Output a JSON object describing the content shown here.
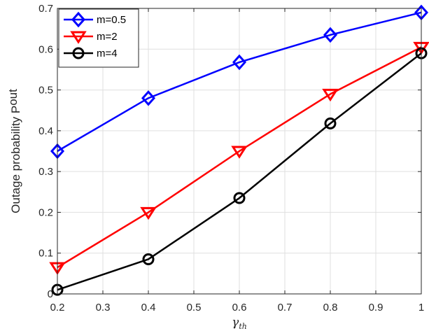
{
  "chart_data": {
    "type": "line",
    "x": [
      0.2,
      0.4,
      0.6,
      0.8,
      1.0
    ],
    "series": [
      {
        "name": "m=0.5",
        "values": [
          0.35,
          0.48,
          0.568,
          0.635,
          0.69
        ],
        "color": "#0000ff",
        "marker": "diamond"
      },
      {
        "name": "m=2",
        "values": [
          0.065,
          0.2,
          0.35,
          0.49,
          0.605
        ],
        "color": "#ff0000",
        "marker": "triangle-down"
      },
      {
        "name": "m=4",
        "values": [
          0.01,
          0.085,
          0.235,
          0.418,
          0.59
        ],
        "color": "#000000",
        "marker": "circle"
      }
    ],
    "xlim": [
      0.2,
      1.0
    ],
    "ylim": [
      0,
      0.7
    ],
    "xticks": [
      "0.2",
      "0.3",
      "0.4",
      "0.5",
      "0.6",
      "0.7",
      "0.8",
      "0.9",
      "1"
    ],
    "yticks": [
      "0",
      "0.1",
      "0.2",
      "0.3",
      "0.4",
      "0.5",
      "0.6",
      "0.7"
    ],
    "xlabel": {
      "main": "γ",
      "sub": "th"
    },
    "ylabel": {
      "main": "Outage probability P",
      "sub": "out"
    },
    "grid": true,
    "legend_position": "top-left"
  }
}
